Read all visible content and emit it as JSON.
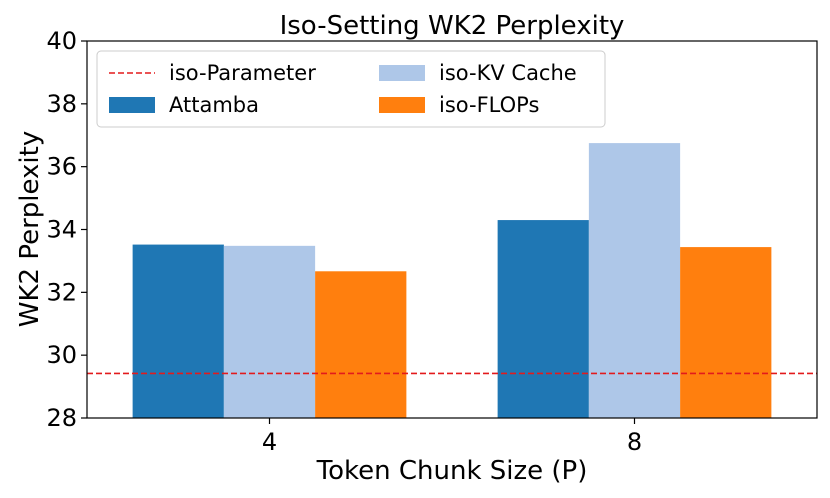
{
  "chart_data": {
    "type": "bar",
    "title": "Iso-Setting WK2 Perplexity",
    "xlabel": "Token Chunk Size (P)",
    "ylabel": "WK2 Perplexity",
    "categories": [
      "4",
      "8"
    ],
    "ylim": [
      28,
      40
    ],
    "yticks": [
      28,
      30,
      32,
      34,
      36,
      38,
      40
    ],
    "series": [
      {
        "name": "Attamba",
        "values": [
          33.52,
          34.3
        ],
        "color": "#1f77b4"
      },
      {
        "name": "iso-KV Cache",
        "values": [
          33.48,
          36.75
        ],
        "color": "#aec7e8"
      },
      {
        "name": "iso-FLOPs",
        "values": [
          32.67,
          33.44
        ],
        "color": "#ff7f0e"
      }
    ],
    "reference_lines": [
      {
        "name": "iso-Parameter",
        "value": 29.42,
        "color": "#e31a1c",
        "style": "dashed"
      }
    ],
    "legend": {
      "placement": "top-left",
      "columns": 2,
      "entries": [
        "iso-Parameter",
        "Attamba",
        "iso-KV Cache",
        "iso-FLOPs"
      ]
    },
    "grid": false
  }
}
